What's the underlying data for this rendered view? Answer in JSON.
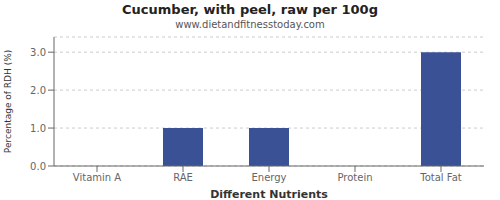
{
  "chart_data": {
    "type": "bar",
    "title": "Cucumber, with peel, raw per 100g",
    "subtitle": "www.dietandfitnesstoday.com",
    "xlabel": "Different Nutrients",
    "ylabel": "Percentage of RDH (%)",
    "categories": [
      "Vitamin A",
      "RAE",
      "Energy",
      "Protein",
      "Total Fat"
    ],
    "values": [
      0.0,
      1.0,
      1.0,
      0.0,
      3.0
    ],
    "color": "#3a5295",
    "ylim": [
      0,
      3.4
    ],
    "yticks": [
      {
        "value": 0,
        "label": "0.0"
      },
      {
        "value": 1,
        "label": "1.0"
      },
      {
        "value": 2,
        "label": "2.0"
      },
      {
        "value": 3,
        "label": "3.0"
      }
    ],
    "grid": true
  }
}
